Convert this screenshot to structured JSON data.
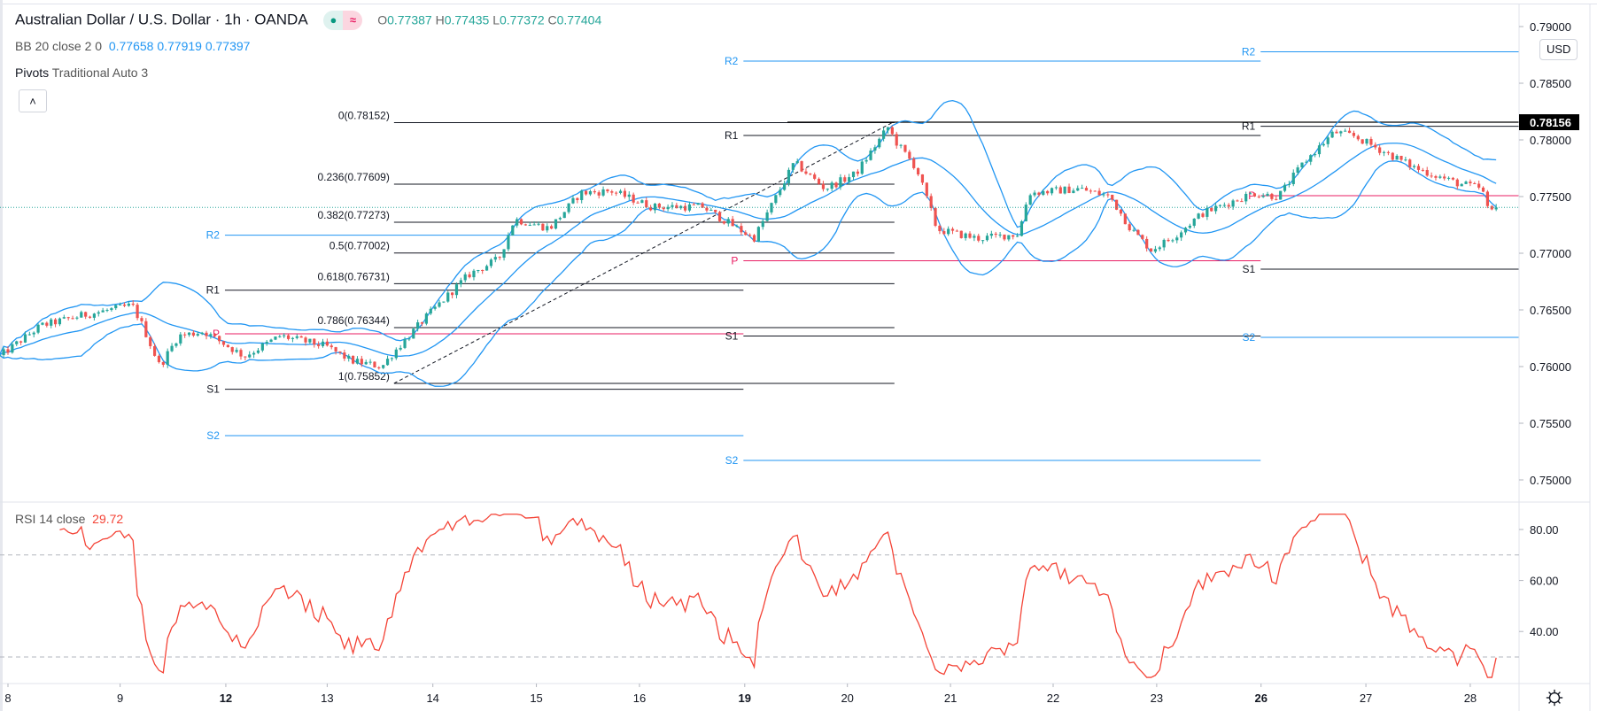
{
  "header": {
    "symbol_title": "Australian Dollar / U.S. Dollar · 1h · OANDA",
    "status_dot": "●",
    "status_wave": "≈",
    "ohlc": {
      "o_label": "O",
      "o": "0.77387",
      "h_label": "H",
      "h": "0.77435",
      "l_label": "L",
      "l": "0.77372",
      "c_label": "C",
      "c": "0.77404"
    },
    "bb": {
      "label": "BB 20 close 2 0",
      "basis": "0.77658",
      "upper": "0.77919",
      "lower": "0.77397"
    },
    "pivots": {
      "label": "Pivots",
      "params": "Traditional Auto 3"
    },
    "collapse_icon": "˄"
  },
  "currency_button": "USD",
  "rsi_legend": {
    "label": "RSI 14 close",
    "value": "29.72"
  },
  "colors": {
    "up": "#26a69a",
    "down": "#ef5350",
    "bb": "#2196f3",
    "rsi": "#f44336",
    "pivot_p": "#e91e63",
    "pivot_blue": "#2196f3",
    "pivot_black": "#131722",
    "last_price": "#26a69a"
  },
  "chart_data": {
    "type": "candlestick",
    "symbol": "AUDUSD",
    "timeframe": "1h",
    "price_axis": {
      "ticks": [
        "0.79000",
        "0.78500",
        "0.78000",
        "0.77500",
        "0.77000",
        "0.76500",
        "0.76000",
        "0.75500",
        "0.75000"
      ],
      "range": [
        0.7465,
        0.7914
      ]
    },
    "price_marker": "0.78156",
    "last_close": 0.77404,
    "time_axis": [
      {
        "label": "8",
        "hour": 0
      },
      {
        "label": "9",
        "hour": 26
      },
      {
        "label": "12",
        "hour": 50.5,
        "bold": true
      },
      {
        "label": "13",
        "hour": 74
      },
      {
        "label": "14",
        "hour": 98.5
      },
      {
        "label": "15",
        "hour": 122.5
      },
      {
        "label": "16",
        "hour": 146.4
      },
      {
        "label": "19",
        "hour": 170.8,
        "bold": true
      },
      {
        "label": "20",
        "hour": 194.6
      },
      {
        "label": "21",
        "hour": 218.5
      },
      {
        "label": "22",
        "hour": 242.3
      },
      {
        "label": "23",
        "hour": 266.3
      },
      {
        "label": "26",
        "hour": 290.5,
        "bold": true
      },
      {
        "label": "27",
        "hour": 314.8
      },
      {
        "label": "28",
        "hour": 339
      }
    ],
    "close_path": [
      [
        -2,
        0.7609
      ],
      [
        7.6,
        0.7636
      ],
      [
        17,
        0.7645
      ],
      [
        28.8,
        0.7654
      ],
      [
        31.2,
        0.7636
      ],
      [
        35.2,
        0.76
      ],
      [
        39.5,
        0.7627
      ],
      [
        45.4,
        0.7631
      ],
      [
        54.8,
        0.7609
      ],
      [
        63.1,
        0.7627
      ],
      [
        73.7,
        0.7618
      ],
      [
        79.6,
        0.7605
      ],
      [
        86.7,
        0.76
      ],
      [
        89.5,
        0.7613
      ],
      [
        97.3,
        0.7645
      ],
      [
        106.8,
        0.7681
      ],
      [
        113.8,
        0.7695
      ],
      [
        117.4,
        0.773
      ],
      [
        125.6,
        0.7722
      ],
      [
        132.7,
        0.7753
      ],
      [
        139.8,
        0.7755
      ],
      [
        149.3,
        0.7741
      ],
      [
        161,
        0.7741
      ],
      [
        172.9,
        0.7713
      ],
      [
        182.3,
        0.778
      ],
      [
        189.4,
        0.7757
      ],
      [
        196.5,
        0.777
      ],
      [
        204,
        0.7811
      ],
      [
        205.9,
        0.7798
      ],
      [
        210.6,
        0.7775
      ],
      [
        215.4,
        0.7721
      ],
      [
        224.8,
        0.7713
      ],
      [
        234.3,
        0.7717
      ],
      [
        236.6,
        0.7753
      ],
      [
        248.4,
        0.7757
      ],
      [
        255.5,
        0.775
      ],
      [
        260.2,
        0.7722
      ],
      [
        265,
        0.7703
      ],
      [
        269.7,
        0.7713
      ],
      [
        276.8,
        0.7735
      ],
      [
        288.6,
        0.7753
      ],
      [
        294.5,
        0.775
      ],
      [
        300.4,
        0.778
      ],
      [
        307.5,
        0.7807
      ],
      [
        312.2,
        0.7803
      ],
      [
        319.3,
        0.7789
      ],
      [
        326.4,
        0.7775
      ],
      [
        335.8,
        0.7762
      ],
      [
        341.7,
        0.7757
      ],
      [
        343.3,
        0.7735
      ],
      [
        345,
        0.774
      ]
    ],
    "fibonacci": {
      "from": {
        "hour": 89.5,
        "price": 0.75852
      },
      "to": {
        "hour": 205,
        "price": 0.78152
      },
      "extent_hour": 205.5,
      "levels": [
        {
          "ratio": "0",
          "price": 0.78152,
          "label": "0(0.78152)"
        },
        {
          "ratio": "0.236",
          "price": 0.77609,
          "label": "0.236(0.77609)"
        },
        {
          "ratio": "0.382",
          "price": 0.77273,
          "label": "0.382(0.77273)"
        },
        {
          "ratio": "0.5",
          "price": 0.77002,
          "label": "0.5(0.77002)"
        },
        {
          "ratio": "0.618",
          "price": 0.76731,
          "label": "0.618(0.76731)"
        },
        {
          "ratio": "0.786",
          "price": 0.76344,
          "label": "0.786(0.76344)"
        },
        {
          "ratio": "1",
          "price": 0.75852,
          "label": "1(0.75852)"
        }
      ]
    },
    "horizontal_line": {
      "price": 0.78156,
      "from_hour": 180.7
    },
    "pivots": [
      {
        "from_hour": 50.3,
        "to_hour": 170.5,
        "levels": [
          {
            "label": "R2",
            "price": 0.77159
          },
          {
            "label": "R1",
            "price": 0.76674
          },
          {
            "label": "P",
            "price": 0.76289
          },
          {
            "label": "S1",
            "price": 0.758
          },
          {
            "label": "S2",
            "price": 0.75391
          }
        ]
      },
      {
        "from_hour": 170.5,
        "to_hour": 290.4,
        "levels": [
          {
            "label": "R2",
            "price": 0.78695
          },
          {
            "label": "R1",
            "price": 0.78039
          },
          {
            "label": "P",
            "price": 0.76934
          },
          {
            "label": "S1",
            "price": 0.7627
          },
          {
            "label": "S2",
            "price": 0.75172
          }
        ]
      },
      {
        "from_hour": 290.4,
        "to_hour": 350.5,
        "levels": [
          {
            "label": "R2",
            "price": 0.78777
          },
          {
            "label": "R1",
            "price": 0.7812
          },
          {
            "label": "P",
            "price": 0.77508
          },
          {
            "label": "S1",
            "price": 0.76859
          },
          {
            "label": "S2",
            "price": 0.76258
          }
        ]
      }
    ],
    "bollinger": {
      "length": 20,
      "mult": 2
    },
    "rsi": {
      "length": 14,
      "ticks": [
        "80.00",
        "60.00",
        "40.00"
      ],
      "bands": [
        70,
        30
      ],
      "last": 29.72
    }
  }
}
